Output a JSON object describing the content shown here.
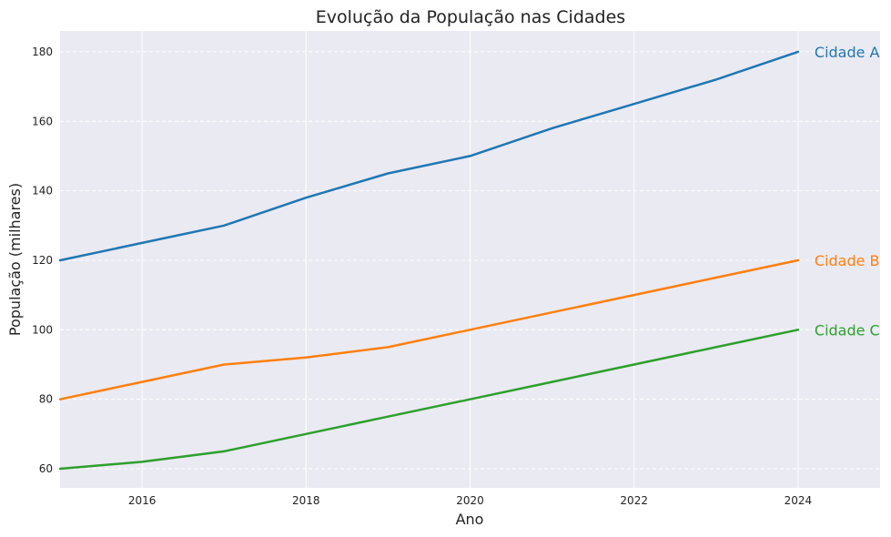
{
  "chart_data": {
    "type": "line",
    "title": "Evolução da População nas Cidades",
    "xlabel": "Ano",
    "ylabel": "População (milhares)",
    "xlim": [
      2015,
      2025
    ],
    "ylim": [
      54.5,
      186
    ],
    "x_ticks": [
      2016,
      2018,
      2020,
      2022,
      2024
    ],
    "y_ticks": [
      60,
      80,
      100,
      120,
      140,
      160,
      180
    ],
    "grid": true,
    "x": [
      2015,
      2016,
      2017,
      2018,
      2019,
      2020,
      2021,
      2022,
      2023,
      2024
    ],
    "series": [
      {
        "name": "Cidade A",
        "color": "#1f77b4",
        "values": [
          120,
          125,
          130,
          138,
          145,
          150,
          158,
          165,
          172,
          180
        ]
      },
      {
        "name": "Cidade B",
        "color": "#ff7f0e",
        "values": [
          80,
          85,
          90,
          92,
          95,
          100,
          105,
          110,
          115,
          120
        ]
      },
      {
        "name": "Cidade C",
        "color": "#2ca02c",
        "values": [
          60,
          62,
          65,
          70,
          75,
          80,
          85,
          90,
          95,
          100
        ]
      }
    ]
  }
}
